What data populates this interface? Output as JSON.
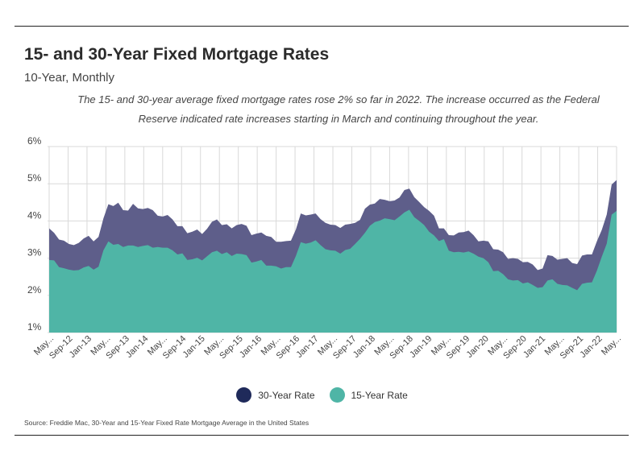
{
  "title": "15- and 30-Year Fixed Mortgage Rates",
  "subtitle": "10-Year, Monthly",
  "description": "The 15- and 30-year average fixed mortgage rates rose 2% so far in 2022. The increase occurred as the Federal Reserve indicated rate increases starting in March and continuing throughout the year.",
  "source": "Source:  Freddie Mac, 30-Year  and 15-Year Fixed Rate Mortgage Average in the United States",
  "colors": {
    "series30": "#5e5e8a",
    "series15": "#4fb5a6",
    "legend30": "#1f2a5a",
    "legend15": "#4fb5a6",
    "grid": "#d9d9d9"
  },
  "chart_data": {
    "type": "area",
    "title": "15- and 30-Year Fixed Mortgage Rates",
    "ylim": [
      1,
      6
    ],
    "yticks": [
      "1%",
      "2%",
      "3%",
      "4%",
      "5%",
      "6%"
    ],
    "tick_labels": [
      "May...",
      "Sep-12",
      "Jan-13",
      "May...",
      "Sep-13",
      "Jan-14",
      "May...",
      "Sep-14",
      "Jan-15",
      "May...",
      "Sep-15",
      "Jan-16",
      "May...",
      "Sep-16",
      "Jan-17",
      "May...",
      "Sep-17",
      "Jan-18",
      "May...",
      "Sep-18",
      "Jan-19",
      "May...",
      "Sep-19",
      "Jan-20",
      "May...",
      "Sep-20",
      "Jan-21",
      "May...",
      "Sep-21",
      "Jan-22",
      "May..."
    ],
    "legend_placement": "bottom",
    "series": [
      {
        "name": "30-Year Rate",
        "values": [
          3.8,
          3.68,
          3.5,
          3.47,
          3.38,
          3.35,
          3.41,
          3.53,
          3.6,
          3.45,
          3.57,
          4.07,
          4.45,
          4.4,
          4.49,
          4.29,
          4.28,
          4.46,
          4.34,
          4.32,
          4.35,
          4.29,
          4.14,
          4.12,
          4.16,
          4.04,
          3.86,
          3.86,
          3.67,
          3.71,
          3.77,
          3.65,
          3.79,
          3.98,
          4.04,
          3.89,
          3.91,
          3.8,
          3.89,
          3.92,
          3.87,
          3.62,
          3.66,
          3.69,
          3.6,
          3.57,
          3.44,
          3.44,
          3.46,
          3.47,
          3.77,
          4.2,
          4.15,
          4.17,
          4.2,
          4.05,
          3.95,
          3.9,
          3.89,
          3.81,
          3.9,
          3.92,
          3.95,
          4.03,
          4.33,
          4.44,
          4.47,
          4.59,
          4.57,
          4.53,
          4.55,
          4.63,
          4.83,
          4.87,
          4.64,
          4.51,
          4.37,
          4.27,
          4.14,
          3.8,
          3.8,
          3.62,
          3.61,
          3.69,
          3.7,
          3.74,
          3.62,
          3.45,
          3.47,
          3.45,
          3.24,
          3.23,
          3.16,
          2.98,
          3.0,
          2.98,
          2.89,
          2.9,
          2.83,
          2.68,
          2.72,
          3.08,
          3.06,
          2.96,
          2.98,
          3.0,
          2.87,
          2.84,
          3.07,
          3.1,
          3.1,
          3.45,
          3.76,
          4.17,
          4.98,
          5.1
        ]
      },
      {
        "name": "15-Year Rate",
        "values": [
          2.95,
          2.94,
          2.76,
          2.73,
          2.69,
          2.67,
          2.68,
          2.75,
          2.79,
          2.69,
          2.77,
          3.21,
          3.45,
          3.36,
          3.38,
          3.3,
          3.34,
          3.34,
          3.3,
          3.33,
          3.35,
          3.28,
          3.3,
          3.28,
          3.28,
          3.21,
          3.1,
          3.13,
          2.95,
          2.97,
          3.01,
          2.94,
          3.05,
          3.16,
          3.2,
          3.11,
          3.16,
          3.06,
          3.12,
          3.11,
          3.08,
          2.88,
          2.91,
          2.95,
          2.8,
          2.8,
          2.78,
          2.72,
          2.76,
          2.76,
          3.06,
          3.43,
          3.39,
          3.42,
          3.48,
          3.35,
          3.24,
          3.21,
          3.2,
          3.12,
          3.22,
          3.25,
          3.38,
          3.52,
          3.68,
          3.87,
          3.97,
          4.01,
          4.07,
          4.05,
          4.02,
          4.12,
          4.23,
          4.3,
          4.1,
          4.0,
          3.89,
          3.71,
          3.61,
          3.46,
          3.51,
          3.2,
          3.16,
          3.17,
          3.15,
          3.18,
          3.12,
          3.04,
          3.0,
          2.89,
          2.65,
          2.66,
          2.57,
          2.43,
          2.4,
          2.41,
          2.32,
          2.35,
          2.28,
          2.2,
          2.22,
          2.4,
          2.43,
          2.31,
          2.28,
          2.27,
          2.2,
          2.14,
          2.31,
          2.34,
          2.35,
          2.66,
          3.04,
          3.39,
          4.17,
          4.27
        ]
      }
    ]
  }
}
